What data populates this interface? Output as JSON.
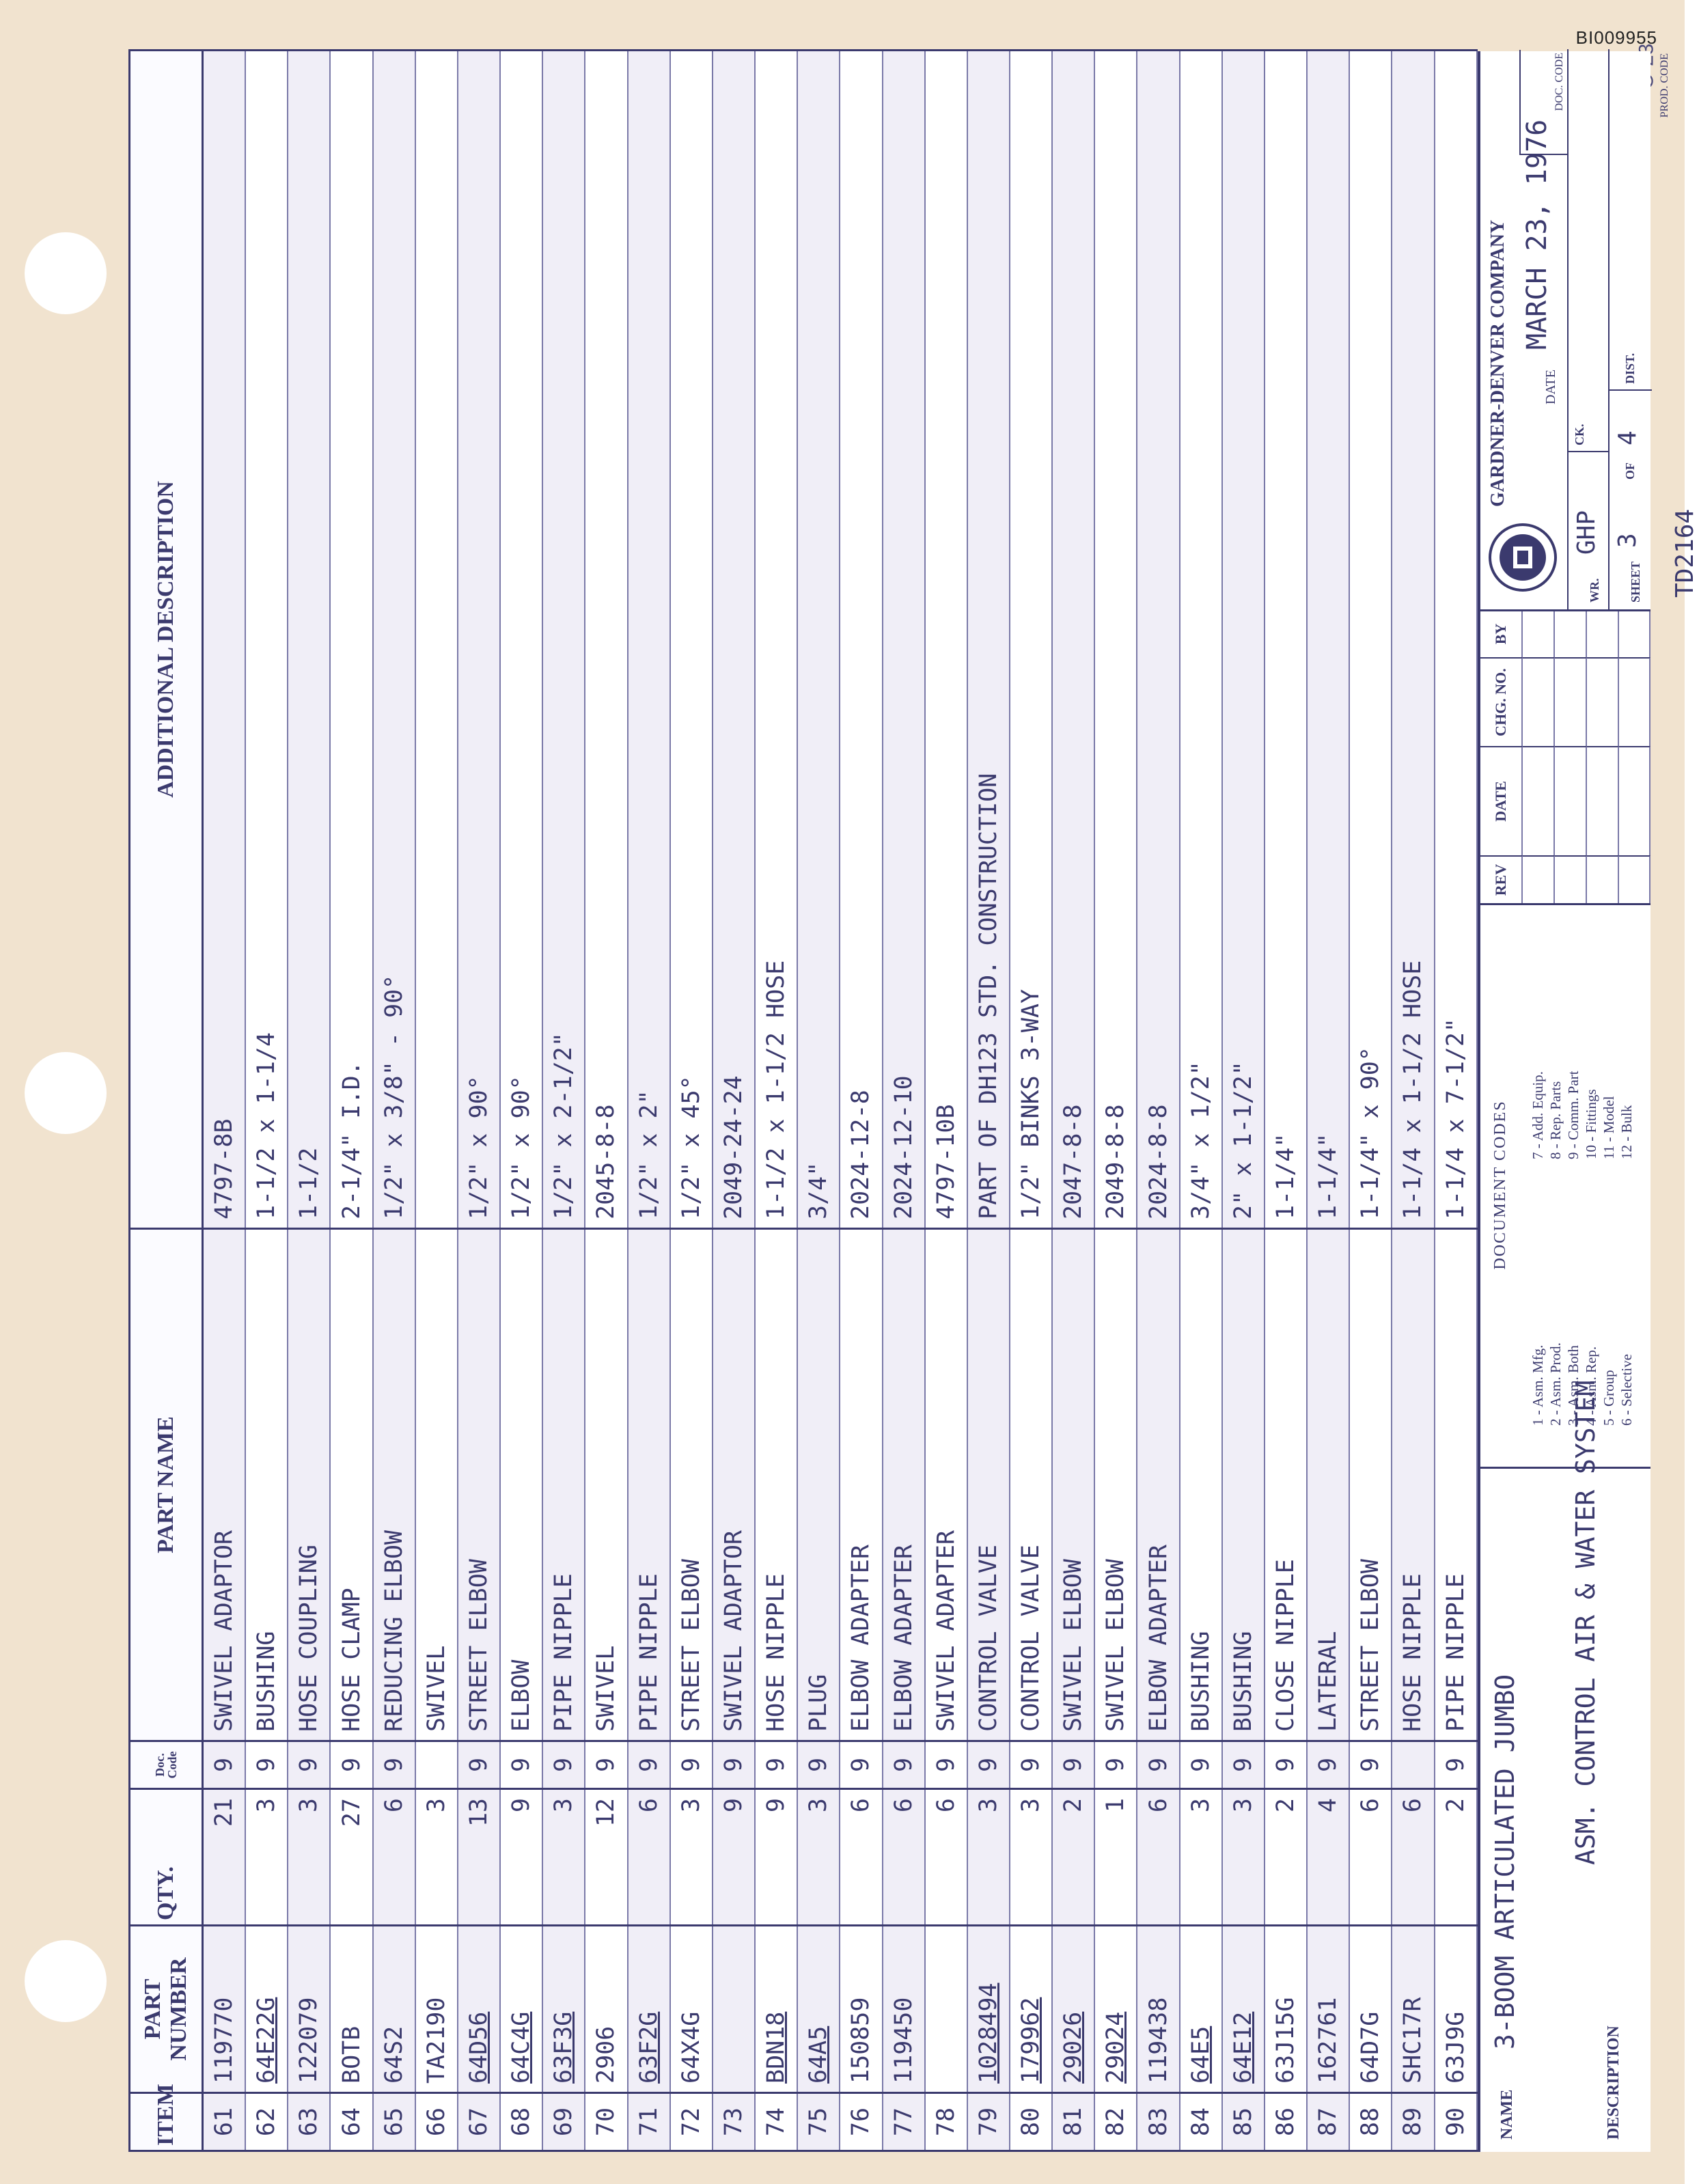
{
  "bates_number": "BI009955",
  "page_corner": "O-23",
  "headers": {
    "item": "ITEM",
    "part_number": "PART NUMBER",
    "qty": "QTY.",
    "doc_code": "Doc. Code",
    "part_name": "PART NAME",
    "additional_description": "ADDITIONAL DESCRIPTION"
  },
  "rows": [
    {
      "item": "61",
      "part_number": "119770",
      "qty": "21",
      "doc_code": "9",
      "part_name": "SWIVEL ADAPTOR",
      "description": "4797-8B"
    },
    {
      "item": "62",
      "part_number": "64E22G",
      "qty": "3",
      "doc_code": "9",
      "part_name": "BUSHING",
      "description": "1-1/2 x 1-1/4"
    },
    {
      "item": "63",
      "part_number": "122079",
      "qty": "3",
      "doc_code": "9",
      "part_name": "HOSE COUPLING",
      "description": "1-1/2"
    },
    {
      "item": "64",
      "part_number": "BOTB",
      "qty": "27",
      "doc_code": "9",
      "part_name": "HOSE CLAMP",
      "description": "2-1/4\" I.D."
    },
    {
      "item": "65",
      "part_number": "64S2",
      "qty": "6",
      "doc_code": "9",
      "part_name": "REDUCING ELBOW",
      "description": "1/2\" x 3/8\" - 90°"
    },
    {
      "item": "66",
      "part_number": "TA2190",
      "qty": "3",
      "doc_code": "",
      "part_name": "SWIVEL",
      "description": ""
    },
    {
      "item": "67",
      "part_number": "64D56",
      "qty": "13",
      "doc_code": "9",
      "part_name": "STREET ELBOW",
      "description": "1/2\" x 90°"
    },
    {
      "item": "68",
      "part_number": "64C4G",
      "qty": "9",
      "doc_code": "9",
      "part_name": "ELBOW",
      "description": "1/2\" x 90°"
    },
    {
      "item": "69",
      "part_number": "63F3G",
      "qty": "3",
      "doc_code": "9",
      "part_name": "PIPE NIPPLE",
      "description": "1/2\" x 2-1/2\""
    },
    {
      "item": "70",
      "part_number": "2906",
      "qty": "12",
      "doc_code": "9",
      "part_name": "SWIVEL",
      "description": "2045-8-8"
    },
    {
      "item": "71",
      "part_number": "63F2G",
      "qty": "6",
      "doc_code": "9",
      "part_name": "PIPE NIPPLE",
      "description": "1/2\" x 2\""
    },
    {
      "item": "72",
      "part_number": "64X4G",
      "qty": "3",
      "doc_code": "9",
      "part_name": "STREET ELBOW",
      "description": "1/2\" x 45°"
    },
    {
      "item": "73",
      "part_number": "",
      "qty": "9",
      "doc_code": "9",
      "part_name": "SWIVEL ADAPTOR",
      "description": "2049-24-24"
    },
    {
      "item": "74",
      "part_number": "BDN18",
      "qty": "9",
      "doc_code": "9",
      "part_name": "HOSE NIPPLE",
      "description": "1-1/2 x 1-1/2 HOSE"
    },
    {
      "item": "75",
      "part_number": "64A5",
      "qty": "3",
      "doc_code": "9",
      "part_name": "PLUG",
      "description": "3/4\""
    },
    {
      "item": "76",
      "part_number": "150859",
      "qty": "6",
      "doc_code": "9",
      "part_name": "ELBOW ADAPTER",
      "description": "2024-12-8"
    },
    {
      "item": "77",
      "part_number": "119450",
      "qty": "6",
      "doc_code": "9",
      "part_name": "ELBOW ADAPTER",
      "description": "2024-12-10"
    },
    {
      "item": "78",
      "part_number": "",
      "qty": "6",
      "doc_code": "9",
      "part_name": "SWIVEL ADAPTER",
      "description": "4797-10B"
    },
    {
      "item": "79",
      "part_number": "1028494",
      "qty": "3",
      "doc_code": "9",
      "part_name": "CONTROL VALVE",
      "description": "PART OF DH123 STD. CONSTRUCTION"
    },
    {
      "item": "80",
      "part_number": "179962",
      "qty": "3",
      "doc_code": "9",
      "part_name": "CONTROL VALVE",
      "description": "1/2\" BINKS 3-WAY"
    },
    {
      "item": "81",
      "part_number": "29026",
      "qty": "2",
      "doc_code": "9",
      "part_name": "SWIVEL ELBOW",
      "description": "2047-8-8"
    },
    {
      "item": "82",
      "part_number": "29024",
      "qty": "1",
      "doc_code": "9",
      "part_name": "SWIVEL ELBOW",
      "description": "2049-8-8"
    },
    {
      "item": "83",
      "part_number": "119438",
      "qty": "6",
      "doc_code": "9",
      "part_name": "ELBOW ADAPTER",
      "description": "2024-8-8"
    },
    {
      "item": "84",
      "part_number": "64E5",
      "qty": "3",
      "doc_code": "9",
      "part_name": "BUSHING",
      "description": "3/4\" x 1/2\""
    },
    {
      "item": "85",
      "part_number": "64E12",
      "qty": "3",
      "doc_code": "9",
      "part_name": "BUSHING",
      "description": "2\" x 1-1/2\""
    },
    {
      "item": "86",
      "part_number": "63J15G",
      "qty": "2",
      "doc_code": "9",
      "part_name": "CLOSE NIPPLE",
      "description": "1-1/4\""
    },
    {
      "item": "87",
      "part_number": "162761",
      "qty": "4",
      "doc_code": "9",
      "part_name": "LATERAL",
      "description": "1-1/4\""
    },
    {
      "item": "88",
      "part_number": "64D7G",
      "qty": "6",
      "doc_code": "9",
      "part_name": "STREET ELBOW",
      "description": "1-1/4\" x 90°"
    },
    {
      "item": "89",
      "part_number": "SHC17R",
      "qty": "6",
      "doc_code": "",
      "part_name": "HOSE NIPPLE",
      "description": "1-1/4 x 1-1/2 HOSE"
    },
    {
      "item": "90",
      "part_number": "63J9G",
      "qty": "2",
      "doc_code": "9",
      "part_name": "PIPE NIPPLE",
      "description": "1-1/4 x 7-1/2\""
    }
  ],
  "footer": {
    "name_label": "NAME",
    "name_value": "3-BOOM ARTICULATED JUMBO",
    "description_label": "DESCRIPTION",
    "description_value": "ASM. CONTROL AIR & WATER SYSTEM",
    "document_codes_title": "DOCUMENT CODES",
    "document_codes": [
      "1 - Asm. Mfg.",
      "2 - Asm. Prod.",
      "3 - Asm. Both",
      "4 - Asm. Rep.",
      "5 - Group",
      "6 - Selective",
      "7 - Add. Equip.",
      "8 - Rep. Parts",
      "9 - Comm. Part",
      "10 - Fittings",
      "11 - Model",
      "12 - Bulk"
    ],
    "rev_headers": [
      "REV",
      "DATE",
      "CHG. NO.",
      "BY"
    ],
    "company": "GARDNER-DENVER COMPANY",
    "date_label": "DATE",
    "date_value": "MARCH 23, 1976",
    "doc_code_label": "DOC. CODE",
    "wr_label": "WR.",
    "wr_value": "GHP",
    "ck_label": "CK.",
    "sheet_label": "SHEET",
    "sheet_value": "3",
    "of_label": "OF",
    "of_value": "4",
    "dist_label": "DIST.",
    "drawing_number": "TD2164",
    "prod_code_label": "PROD. CODE"
  },
  "colors": {
    "ink": "#3b3a6e",
    "paper": "#f1e3cf",
    "stripe": "#f0eef7"
  }
}
